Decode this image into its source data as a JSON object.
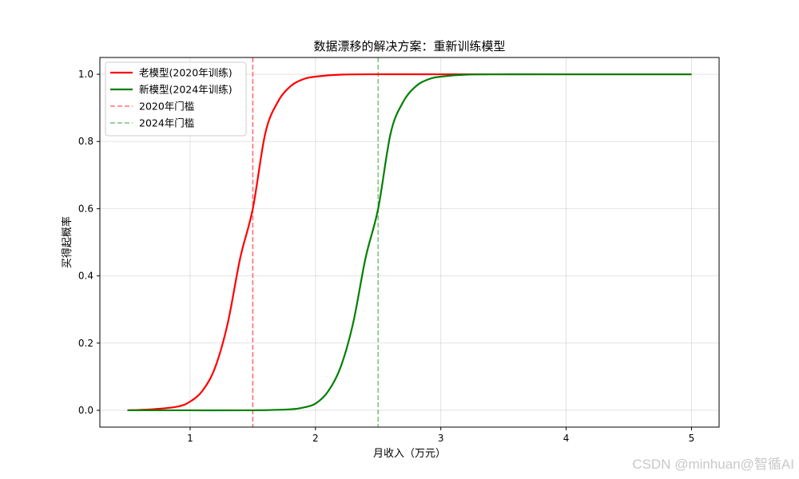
{
  "chart_data": {
    "type": "line",
    "title": "数据漂移的解决方案：重新训练模型",
    "xlabel": "月收入（万元）",
    "ylabel": "买得起概率",
    "xlim": [
      0.28,
      5.22
    ],
    "ylim": [
      -0.05,
      1.05
    ],
    "xticks": [
      1,
      2,
      3,
      4,
      5
    ],
    "yticks": [
      0.0,
      0.2,
      0.4,
      0.6,
      0.8,
      1.0
    ],
    "ytick_labels": [
      "0.0",
      "0.2",
      "0.4",
      "0.6",
      "0.8",
      "1.0"
    ],
    "grid": true,
    "legend_position": "top-left",
    "series": [
      {
        "name": "老模型(2020年训练)",
        "color": "#ff0000",
        "style": "solid",
        "x": [
          0.5,
          0.7,
          0.9,
          1.0,
          1.1,
          1.2,
          1.3,
          1.4,
          1.5,
          1.6,
          1.7,
          1.8,
          1.9,
          2.0,
          2.2,
          2.5,
          3.0,
          4.0,
          5.0
        ],
        "y": [
          0.0,
          0.003,
          0.011,
          0.026,
          0.059,
          0.128,
          0.259,
          0.454,
          0.6,
          0.825,
          0.918,
          0.964,
          0.985,
          0.993,
          0.999,
          1.0,
          1.0,
          1.0,
          1.0
        ]
      },
      {
        "name": "新模型(2024年训练)",
        "color": "#008000",
        "style": "solid",
        "x": [
          0.5,
          1.0,
          1.5,
          1.8,
          1.9,
          2.0,
          2.1,
          2.2,
          2.3,
          2.4,
          2.5,
          2.6,
          2.7,
          2.8,
          2.9,
          3.0,
          3.2,
          3.5,
          4.0,
          5.0
        ],
        "y": [
          0.0,
          0.0,
          0.0,
          0.003,
          0.008,
          0.02,
          0.056,
          0.128,
          0.259,
          0.454,
          0.6,
          0.825,
          0.918,
          0.964,
          0.985,
          0.993,
          0.999,
          1.0,
          1.0,
          1.0
        ]
      }
    ],
    "thresholds": [
      {
        "name": "2020年门槛",
        "x": 1.5,
        "color": "#ff7070",
        "style": "dashed"
      },
      {
        "name": "2024年门槛",
        "x": 2.5,
        "color": "#7ec27e",
        "style": "dashed"
      }
    ]
  },
  "watermark": "CSDN @minhuan@智循AI"
}
